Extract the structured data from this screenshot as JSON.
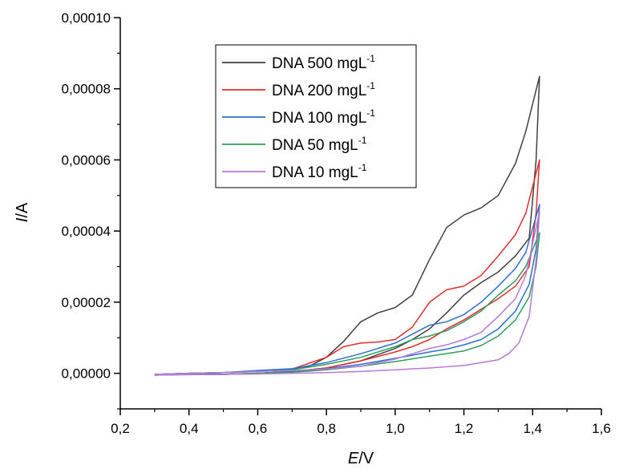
{
  "chart_data": {
    "type": "line",
    "xlabel_italic": "E",
    "xlabel_unit": "/V",
    "ylabel_italic": "I",
    "ylabel_unit": "/A",
    "xlim": [
      0.2,
      1.6
    ],
    "ylim": [
      -1e-05,
      0.0001
    ],
    "x_ticks": [
      0.2,
      0.4,
      0.6,
      0.8,
      1.0,
      1.2,
      1.4,
      1.6
    ],
    "x_tick_labels": [
      "0,2",
      "0,4",
      "0,6",
      "0,8",
      "1,0",
      "1,2",
      "1,4",
      "1,6"
    ],
    "y_ticks": [
      0,
      2e-05,
      4e-05,
      6e-05,
      8e-05,
      0.0001
    ],
    "y_tick_labels": [
      "0,00000",
      "0,00002",
      "0,00004",
      "0,00006",
      "0,00008",
      "0,00010"
    ],
    "grid": false,
    "legend_position": "top-left",
    "series": [
      {
        "name": "DNA 500 mgL",
        "name_sup": "-1",
        "color": "#404040",
        "forward": [
          [
            0.3,
            -3e-07
          ],
          [
            0.4,
            0.0
          ],
          [
            0.5,
            2e-07
          ],
          [
            0.6,
            5e-07
          ],
          [
            0.7,
            1.2e-06
          ],
          [
            0.75,
            2e-06
          ],
          [
            0.8,
            4.5e-06
          ],
          [
            0.85,
            9e-06
          ],
          [
            0.9,
            1.45e-05
          ],
          [
            0.95,
            1.7e-05
          ],
          [
            1.0,
            1.85e-05
          ],
          [
            1.05,
            2.2e-05
          ],
          [
            1.1,
            3.2e-05
          ],
          [
            1.15,
            4.1e-05
          ],
          [
            1.2,
            4.45e-05
          ],
          [
            1.25,
            4.65e-05
          ],
          [
            1.3,
            5e-05
          ],
          [
            1.35,
            5.9e-05
          ],
          [
            1.38,
            6.8e-05
          ],
          [
            1.42,
            8.35e-05
          ]
        ],
        "reverse": [
          [
            1.42,
            8.35e-05
          ],
          [
            1.41,
            6e-05
          ],
          [
            1.39,
            3.8e-05
          ],
          [
            1.35,
            3.3e-05
          ],
          [
            1.3,
            2.85e-05
          ],
          [
            1.25,
            2.55e-05
          ],
          [
            1.2,
            2.2e-05
          ],
          [
            1.15,
            1.7e-05
          ],
          [
            1.1,
            1.25e-05
          ],
          [
            1.05,
            9.5e-06
          ],
          [
            1.0,
            7e-06
          ],
          [
            0.9,
            3.5e-06
          ],
          [
            0.8,
            1.5e-06
          ],
          [
            0.7,
            5e-07
          ],
          [
            0.6,
            0.0
          ],
          [
            0.5,
            -3e-07
          ],
          [
            0.4,
            -3e-07
          ],
          [
            0.3,
            -5e-07
          ]
        ]
      },
      {
        "name": "DNA 200 mgL",
        "name_sup": "-1",
        "color": "#e02f2f",
        "forward": [
          [
            0.3,
            -3e-07
          ],
          [
            0.4,
            0.0
          ],
          [
            0.5,
            2e-07
          ],
          [
            0.6,
            5e-07
          ],
          [
            0.7,
            1.2e-06
          ],
          [
            0.8,
            4.5e-06
          ],
          [
            0.85,
            7.5e-06
          ],
          [
            0.9,
            8.5e-06
          ],
          [
            0.95,
            8.8e-06
          ],
          [
            1.0,
            9.5e-06
          ],
          [
            1.05,
            1.3e-05
          ],
          [
            1.1,
            2e-05
          ],
          [
            1.15,
            2.35e-05
          ],
          [
            1.2,
            2.45e-05
          ],
          [
            1.25,
            2.75e-05
          ],
          [
            1.3,
            3.3e-05
          ],
          [
            1.35,
            3.9e-05
          ],
          [
            1.38,
            4.5e-05
          ],
          [
            1.42,
            6e-05
          ]
        ],
        "reverse": [
          [
            1.42,
            6e-05
          ],
          [
            1.41,
            4.5e-05
          ],
          [
            1.39,
            3e-05
          ],
          [
            1.35,
            2.45e-05
          ],
          [
            1.3,
            2.1e-05
          ],
          [
            1.25,
            1.8e-05
          ],
          [
            1.2,
            1.5e-05
          ],
          [
            1.15,
            1.25e-05
          ],
          [
            1.1,
            9.5e-06
          ],
          [
            1.05,
            7.5e-06
          ],
          [
            1.0,
            6e-06
          ],
          [
            0.9,
            3.5e-06
          ],
          [
            0.8,
            1.5e-06
          ],
          [
            0.7,
            5e-07
          ],
          [
            0.6,
            0.0
          ],
          [
            0.5,
            -3e-07
          ],
          [
            0.4,
            -3e-07
          ],
          [
            0.3,
            -5e-07
          ]
        ]
      },
      {
        "name": "DNA 100 mgL",
        "name_sup": "-1",
        "color": "#2e6fcf",
        "forward": [
          [
            0.3,
            -3e-07
          ],
          [
            0.4,
            0.0
          ],
          [
            0.5,
            2e-07
          ],
          [
            0.6,
            8e-07
          ],
          [
            0.7,
            1.3e-06
          ],
          [
            0.8,
            3e-06
          ],
          [
            0.9,
            5.5e-06
          ],
          [
            1.0,
            8.5e-06
          ],
          [
            1.05,
            1.1e-05
          ],
          [
            1.1,
            1.35e-05
          ],
          [
            1.15,
            1.45e-05
          ],
          [
            1.2,
            1.65e-05
          ],
          [
            1.25,
            2e-05
          ],
          [
            1.3,
            2.45e-05
          ],
          [
            1.35,
            2.95e-05
          ],
          [
            1.38,
            3.4e-05
          ],
          [
            1.42,
            4.75e-05
          ]
        ],
        "reverse": [
          [
            1.42,
            4.75e-05
          ],
          [
            1.41,
            3.5e-05
          ],
          [
            1.39,
            2.5e-05
          ],
          [
            1.35,
            1.75e-05
          ],
          [
            1.3,
            1.25e-05
          ],
          [
            1.25,
            9.5e-06
          ],
          [
            1.2,
            8e-06
          ],
          [
            1.15,
            6.8e-06
          ],
          [
            1.1,
            6e-06
          ],
          [
            1.0,
            4.2e-06
          ],
          [
            0.9,
            2.5e-06
          ],
          [
            0.8,
            1.3e-06
          ],
          [
            0.7,
            5e-07
          ],
          [
            0.6,
            0.0
          ],
          [
            0.5,
            -3e-07
          ],
          [
            0.4,
            -3e-07
          ],
          [
            0.3,
            -5e-07
          ]
        ]
      },
      {
        "name": "DNA 50 mgL",
        "name_sup": "-1",
        "color": "#2e9e5a",
        "forward": [
          [
            0.3,
            -3e-07
          ],
          [
            0.4,
            0.0
          ],
          [
            0.5,
            2e-07
          ],
          [
            0.6,
            5e-07
          ],
          [
            0.7,
            1e-06
          ],
          [
            0.8,
            2.5e-06
          ],
          [
            0.9,
            4.5e-06
          ],
          [
            1.0,
            7.5e-06
          ],
          [
            1.05,
            9.5e-06
          ],
          [
            1.1,
            1.05e-05
          ],
          [
            1.15,
            1.2e-05
          ],
          [
            1.2,
            1.45e-05
          ],
          [
            1.25,
            1.75e-05
          ],
          [
            1.3,
            2.2e-05
          ],
          [
            1.35,
            2.6e-05
          ],
          [
            1.38,
            3e-05
          ],
          [
            1.42,
            3.95e-05
          ]
        ],
        "reverse": [
          [
            1.42,
            3.95e-05
          ],
          [
            1.41,
            3e-05
          ],
          [
            1.39,
            2.15e-05
          ],
          [
            1.35,
            1.5e-05
          ],
          [
            1.3,
            1.05e-05
          ],
          [
            1.25,
            7.8e-06
          ],
          [
            1.2,
            6.3e-06
          ],
          [
            1.1,
            4.8e-06
          ],
          [
            1.0,
            3.3e-06
          ],
          [
            0.9,
            2e-06
          ],
          [
            0.8,
            1e-06
          ],
          [
            0.7,
            3e-07
          ],
          [
            0.6,
            0.0
          ],
          [
            0.5,
            -3e-07
          ],
          [
            0.4,
            -3e-07
          ],
          [
            0.3,
            -5e-07
          ]
        ]
      },
      {
        "name": "DNA 10 mgL",
        "name_sup": "-1",
        "color": "#b57bd6",
        "forward": [
          [
            0.3,
            -3e-07
          ],
          [
            0.4,
            0.0
          ],
          [
            0.5,
            2e-07
          ],
          [
            0.6,
            5e-07
          ],
          [
            0.7,
            8e-07
          ],
          [
            0.8,
            1.2e-06
          ],
          [
            0.9,
            2e-06
          ],
          [
            1.0,
            4e-06
          ],
          [
            1.05,
            5.5e-06
          ],
          [
            1.1,
            7e-06
          ],
          [
            1.15,
            8e-06
          ],
          [
            1.2,
            9.5e-06
          ],
          [
            1.25,
            1.15e-05
          ],
          [
            1.3,
            1.6e-05
          ],
          [
            1.35,
            2.1e-05
          ],
          [
            1.38,
            2.75e-05
          ],
          [
            1.42,
            4.55e-05
          ]
        ],
        "reverse": [
          [
            1.42,
            4.55e-05
          ],
          [
            1.41,
            3.2e-05
          ],
          [
            1.39,
            1.6e-05
          ],
          [
            1.36,
            8.5e-06
          ],
          [
            1.33,
            5.5e-06
          ],
          [
            1.3,
            3.8e-06
          ],
          [
            1.2,
            2.2e-06
          ],
          [
            1.1,
            1.5e-06
          ],
          [
            1.0,
            1e-06
          ],
          [
            0.9,
            5e-07
          ],
          [
            0.8,
            2e-07
          ],
          [
            0.6,
            -2e-07
          ],
          [
            0.4,
            -4e-07
          ],
          [
            0.3,
            -5e-07
          ]
        ]
      }
    ]
  }
}
